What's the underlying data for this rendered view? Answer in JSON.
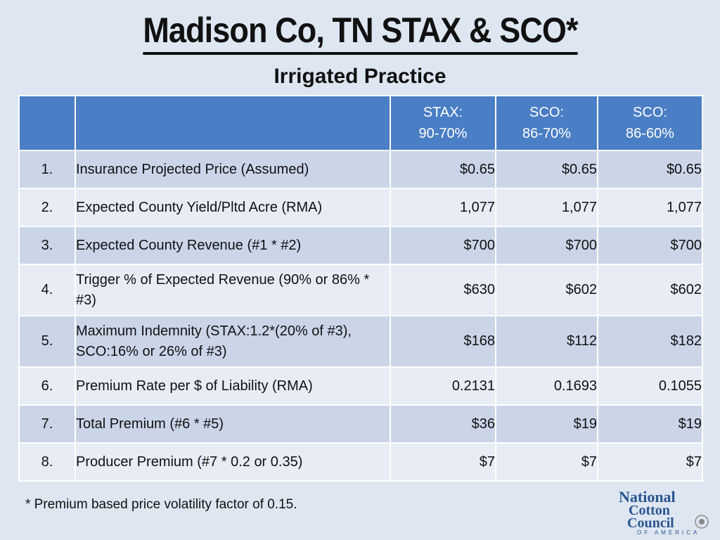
{
  "title": "Madison Co, TN STAX & SCO*",
  "subtitle": "Irrigated Practice",
  "columns": [
    {
      "line1": "STAX:",
      "line2": "90-70%"
    },
    {
      "line1": "SCO:",
      "line2": "86-70%"
    },
    {
      "line1": "SCO:",
      "line2": "86-60%"
    }
  ],
  "rows": [
    {
      "num": "1.",
      "desc": "Insurance Projected Price (Assumed)",
      "v1": "$0.65",
      "v2": "$0.65",
      "v3": "$0.65"
    },
    {
      "num": "2.",
      "desc": "Expected County Yield/Pltd Acre (RMA)",
      "v1": "1,077",
      "v2": "1,077",
      "v3": "1,077"
    },
    {
      "num": "3.",
      "desc": "Expected County Revenue (#1 * #2)",
      "v1": "$700",
      "v2": "$700",
      "v3": "$700"
    },
    {
      "num": "4.",
      "desc": "Trigger % of Expected Revenue (90% or 86% * #3)",
      "v1": "$630",
      "v2": "$602",
      "v3": "$602"
    },
    {
      "num": "5.",
      "desc": "Maximum Indemnity (STAX:1.2*(20% of #3), SCO:16% or 26% of #3)",
      "v1": "$168",
      "v2": "$112",
      "v3": "$182"
    },
    {
      "num": "6.",
      "desc": "Premium Rate per $ of Liability (RMA)",
      "v1": "0.2131",
      "v2": "0.1693",
      "v3": "0.1055"
    },
    {
      "num": "7.",
      "desc": "Total Premium (#6 * #5)",
      "v1": "$36",
      "v2": "$19",
      "v3": "$19"
    },
    {
      "num": "8.",
      "desc": "Producer Premium (#7 * 0.2 or 0.35)",
      "v1": "$7",
      "v2": "$7",
      "v3": "$7"
    }
  ],
  "footnote": "* Premium based price volatility factor of 0.15.",
  "logo": {
    "line1": "National",
    "line2": "Cotton",
    "line3": "Council",
    "line4": "OF AMERICA"
  },
  "colors": {
    "header_bg": "#4a7ec5",
    "row_a": "#cbd5e8",
    "row_b": "#e7ecf5",
    "page_bg": "#dde6f1",
    "logo": "#2b5591"
  }
}
